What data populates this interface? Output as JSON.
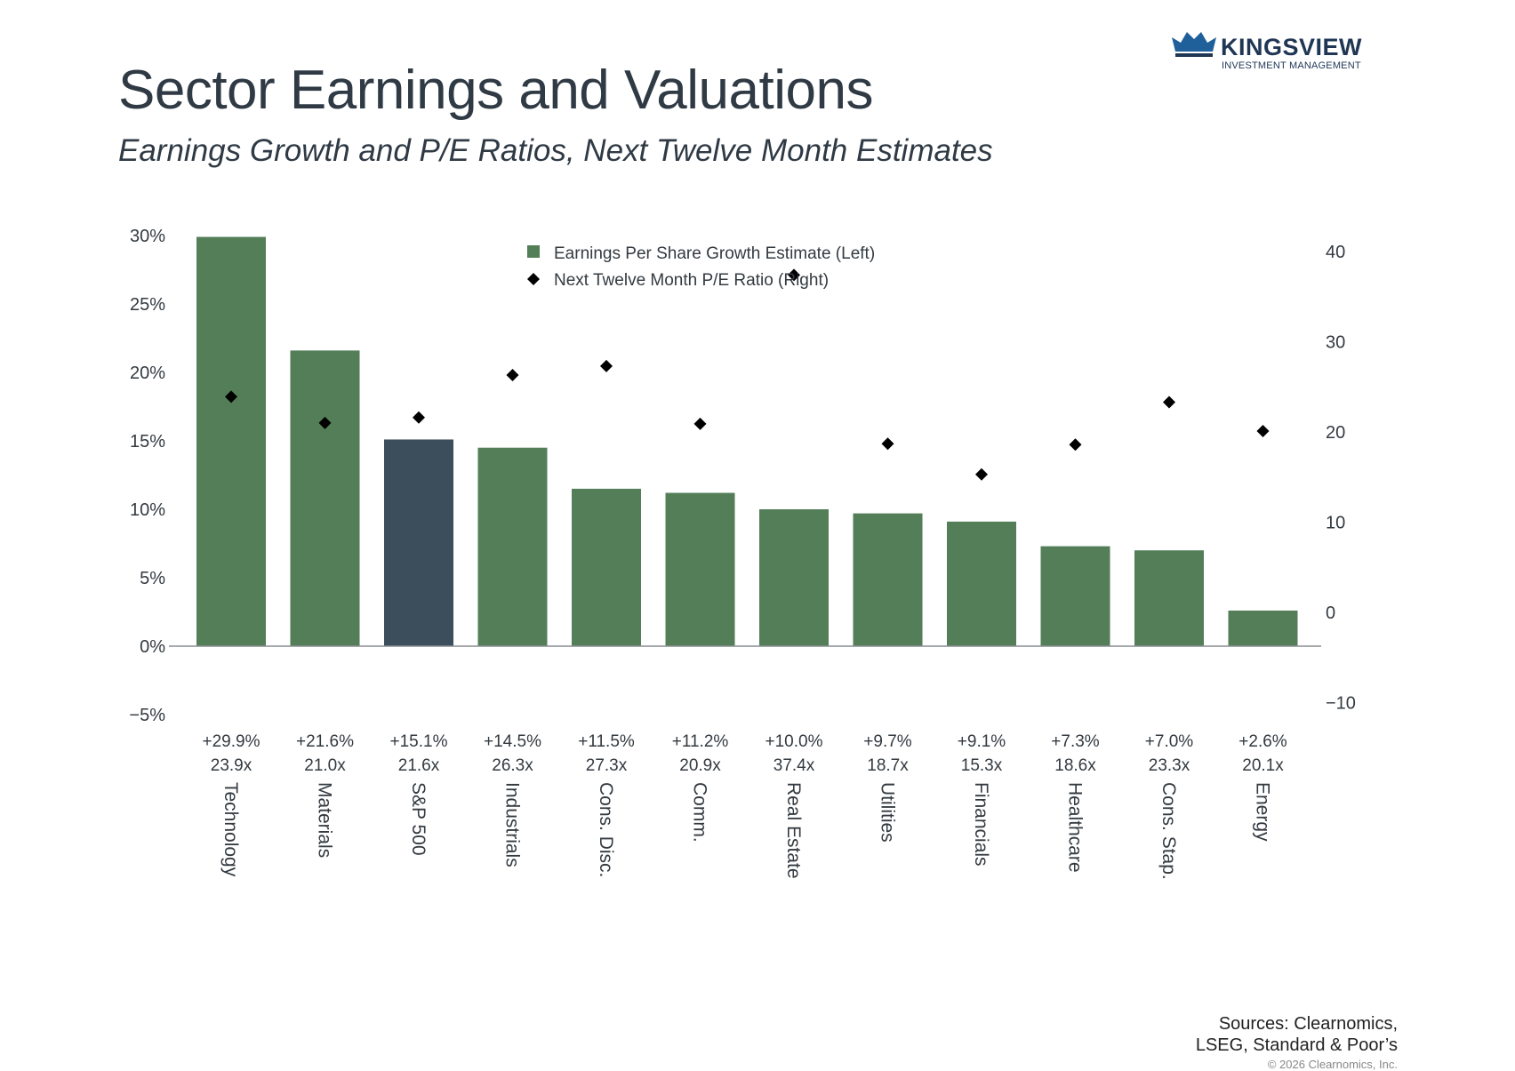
{
  "header": {
    "title": "Sector Earnings and Valuations",
    "subtitle": "Earnings Growth and P/E Ratios, Next Twelve Month Estimates"
  },
  "logo": {
    "name": "KINGSVIEW",
    "tagline": "INVESTMENT MANAGEMENT",
    "icon": "crown-logo-icon"
  },
  "footer": {
    "sources_line1": "Sources: Clearnomics,",
    "sources_line2": "LSEG, Standard & Poor’s",
    "copyright": "© 2026 Clearnomics, Inc."
  },
  "colors": {
    "bar": "#537e58",
    "highlight_bar": "#3c4d5c",
    "marker": "#000000",
    "axis": "#8a8f94",
    "text": "#333a40"
  },
  "chart_data": {
    "type": "bar",
    "categories": [
      "Technology",
      "Materials",
      "S&P 500",
      "Industrials",
      "Cons. Disc.",
      "Comm.",
      "Real Estate",
      "Utilities",
      "Financials",
      "Healthcare",
      "Cons. Stap.",
      "Energy"
    ],
    "highlight_category": "S&P 500",
    "series": [
      {
        "name": "Earnings Per Share Growth Estimate (Left)",
        "type": "bar",
        "axis": "left",
        "values": [
          29.9,
          21.6,
          15.1,
          14.5,
          11.5,
          11.2,
          10.0,
          9.7,
          9.1,
          7.3,
          7.0,
          2.6
        ]
      },
      {
        "name": "Next Twelve Month P/E Ratio (Right)",
        "type": "scatter",
        "marker": "diamond",
        "axis": "right",
        "values": [
          23.9,
          21.0,
          21.6,
          26.3,
          27.3,
          20.9,
          37.4,
          18.7,
          15.3,
          18.6,
          23.3,
          20.1
        ]
      }
    ],
    "growth_labels": [
      "+29.9%",
      "+21.6%",
      "+15.1%",
      "+14.5%",
      "+11.5%",
      "+11.2%",
      "+10.0%",
      "+9.7%",
      "+9.1%",
      "+7.3%",
      "+7.0%",
      "+2.6%"
    ],
    "pe_labels": [
      "23.9x",
      "21.0x",
      "21.6x",
      "26.3x",
      "27.3x",
      "20.9x",
      "37.4x",
      "18.7x",
      "15.3x",
      "18.6x",
      "23.3x",
      "20.1x"
    ],
    "left_axis": {
      "ylim": [
        -5,
        30
      ],
      "ticks": [
        -5,
        0,
        5,
        10,
        15,
        20,
        25,
        30
      ],
      "tick_labels": [
        "−5%",
        "0%",
        "5%",
        "10%",
        "15%",
        "20%",
        "25%",
        "30%"
      ]
    },
    "right_axis": {
      "ylim": [
        -10,
        40
      ],
      "ticks": [
        -10,
        0,
        10,
        20,
        30,
        40
      ],
      "tick_labels": [
        "−10",
        "0",
        "10",
        "20",
        "30",
        "40"
      ]
    },
    "legend_position": "top-center",
    "grid": false
  }
}
